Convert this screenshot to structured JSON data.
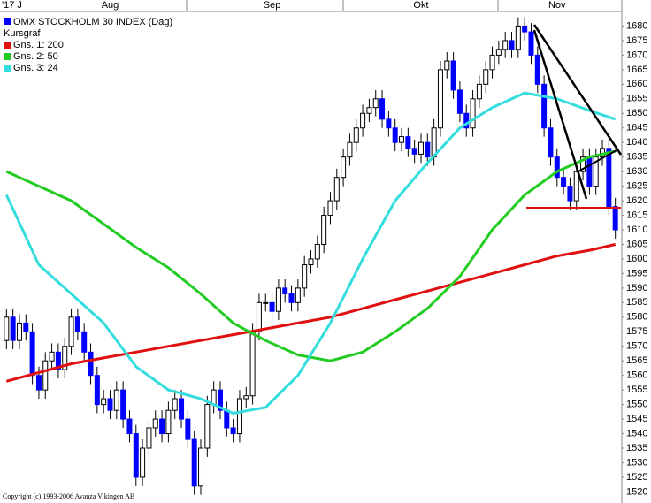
{
  "chart_data": {
    "type": "candlestick",
    "title": "OMX STOCKHOLM 30 INDEX (Dag)",
    "candle_name": "Kursgraf",
    "candle_color": "#0000ff",
    "copyright": "Copyright (c) 1993-2006 Avanza Vikingen AB",
    "candles": {
      "open": [
        1572,
        1580,
        1572,
        1578,
        1575,
        1560,
        1555,
        1565,
        1568,
        1562,
        1570,
        1580,
        1575,
        1568,
        1560,
        1550,
        1552,
        1548,
        1555,
        1545,
        1540,
        1525,
        1535,
        1542,
        1545,
        1540,
        1548,
        1552,
        1545,
        1538,
        1522,
        1535,
        1550,
        1555,
        1548,
        1542,
        1540,
        1552,
        1553,
        1575,
        1585,
        1585,
        1582,
        1590,
        1588,
        1585,
        1590,
        1598,
        1600,
        1605,
        1615,
        1620,
        1628,
        1635,
        1640,
        1645,
        1650,
        1652,
        1655,
        1648,
        1645,
        1640,
        1642,
        1638,
        1636,
        1640,
        1635,
        1645,
        1665,
        1668,
        1658,
        1650,
        1645,
        1655,
        1660,
        1665,
        1670,
        1672,
        1675,
        1672,
        1680,
        1678,
        1670,
        1660,
        1645,
        1635,
        1628,
        1625,
        1620,
        1630,
        1635,
        1625,
        1635,
        1638,
        1618
      ],
      "high": [
        1583,
        1583,
        1581,
        1581,
        1578,
        1563,
        1568,
        1571,
        1571,
        1573,
        1583,
        1583,
        1578,
        1571,
        1563,
        1555,
        1555,
        1558,
        1558,
        1548,
        1543,
        1538,
        1545,
        1548,
        1548,
        1551,
        1555,
        1555,
        1548,
        1541,
        1538,
        1553,
        1558,
        1558,
        1551,
        1545,
        1555,
        1556,
        1578,
        1588,
        1588,
        1588,
        1593,
        1593,
        1591,
        1593,
        1601,
        1603,
        1608,
        1618,
        1623,
        1631,
        1638,
        1643,
        1648,
        1653,
        1655,
        1658,
        1658,
        1651,
        1648,
        1645,
        1645,
        1641,
        1643,
        1643,
        1648,
        1668,
        1671,
        1671,
        1661,
        1653,
        1658,
        1663,
        1668,
        1673,
        1675,
        1678,
        1678,
        1683,
        1683,
        1681,
        1673,
        1663,
        1648,
        1638,
        1631,
        1628,
        1633,
        1638,
        1638,
        1638,
        1641,
        1641,
        1621
      ],
      "low": [
        1569,
        1569,
        1569,
        1572,
        1557,
        1552,
        1552,
        1562,
        1559,
        1559,
        1567,
        1572,
        1565,
        1557,
        1547,
        1547,
        1545,
        1545,
        1542,
        1537,
        1522,
        1522,
        1532,
        1539,
        1537,
        1537,
        1545,
        1542,
        1535,
        1519,
        1519,
        1532,
        1547,
        1545,
        1539,
        1537,
        1537,
        1549,
        1550,
        1572,
        1582,
        1579,
        1579,
        1585,
        1582,
        1582,
        1587,
        1595,
        1597,
        1602,
        1612,
        1617,
        1625,
        1632,
        1637,
        1642,
        1647,
        1649,
        1645,
        1642,
        1637,
        1637,
        1635,
        1633,
        1633,
        1632,
        1632,
        1642,
        1662,
        1655,
        1647,
        1642,
        1642,
        1652,
        1657,
        1662,
        1667,
        1669,
        1669,
        1669,
        1675,
        1667,
        1657,
        1642,
        1632,
        1625,
        1622,
        1617,
        1617,
        1627,
        1622,
        1622,
        1632,
        1615,
        1607
      ],
      "close": [
        1580,
        1572,
        1578,
        1575,
        1560,
        1555,
        1565,
        1568,
        1562,
        1570,
        1580,
        1575,
        1568,
        1560,
        1550,
        1552,
        1548,
        1555,
        1545,
        1540,
        1525,
        1535,
        1542,
        1545,
        1540,
        1548,
        1552,
        1545,
        1538,
        1522,
        1535,
        1550,
        1555,
        1548,
        1542,
        1540,
        1552,
        1553,
        1575,
        1585,
        1585,
        1582,
        1590,
        1588,
        1585,
        1590,
        1598,
        1600,
        1605,
        1615,
        1620,
        1628,
        1635,
        1640,
        1645,
        1650,
        1652,
        1655,
        1648,
        1645,
        1640,
        1642,
        1638,
        1636,
        1640,
        1635,
        1645,
        1665,
        1668,
        1658,
        1650,
        1645,
        1655,
        1660,
        1665,
        1670,
        1672,
        1675,
        1672,
        1680,
        1678,
        1670,
        1660,
        1645,
        1635,
        1628,
        1625,
        1620,
        1630,
        1635,
        1625,
        1635,
        1638,
        1618,
        1610
      ]
    },
    "series": [
      {
        "name": "Gns. 1: 200",
        "color": "#e01010",
        "x": [
          0,
          5,
          10,
          15,
          20,
          25,
          30,
          35,
          40,
          45,
          50,
          55,
          60,
          65,
          70,
          75,
          80,
          85,
          90,
          94
        ],
        "values": [
          1558,
          1561,
          1564,
          1566,
          1568,
          1570,
          1572,
          1574,
          1576,
          1578,
          1580,
          1583,
          1586,
          1589,
          1592,
          1595,
          1598,
          1601,
          1603,
          1605
        ]
      },
      {
        "name": "Gns. 2: 50",
        "color": "#22cc22",
        "x": [
          0,
          5,
          10,
          15,
          20,
          25,
          30,
          35,
          40,
          45,
          50,
          55,
          60,
          65,
          70,
          75,
          80,
          85,
          90,
          94
        ],
        "values": [
          1630,
          1625,
          1620,
          1612,
          1604,
          1597,
          1588,
          1578,
          1572,
          1567,
          1565,
          1568,
          1575,
          1583,
          1594,
          1610,
          1622,
          1630,
          1635,
          1637
        ]
      },
      {
        "name": "Gns. 3: 24",
        "color": "#33dddd",
        "x": [
          0,
          5,
          10,
          15,
          20,
          25,
          30,
          35,
          40,
          45,
          50,
          55,
          60,
          65,
          70,
          75,
          80,
          85,
          90,
          94
        ],
        "values": [
          1622,
          1598,
          1588,
          1578,
          1563,
          1555,
          1552,
          1547,
          1549,
          1560,
          1578,
          1600,
          1620,
          1633,
          1645,
          1652,
          1657,
          1655,
          1651,
          1648
        ]
      }
    ],
    "xlim": [
      -1,
      95
    ],
    "xticks": [
      {
        "value": -1,
        "label": "'17 J"
      },
      {
        "value": 16,
        "label": "Aug"
      },
      {
        "value": 41,
        "label": "Sep"
      },
      {
        "value": 64,
        "label": "Okt"
      },
      {
        "value": 85,
        "label": "Nov"
      }
    ],
    "ylim": [
      1518,
      1685
    ],
    "yticks": [
      1520,
      1525,
      1530,
      1535,
      1540,
      1545,
      1550,
      1555,
      1560,
      1565,
      1570,
      1575,
      1580,
      1585,
      1590,
      1595,
      1600,
      1605,
      1610,
      1615,
      1620,
      1625,
      1630,
      1635,
      1640,
      1645,
      1650,
      1655,
      1660,
      1665,
      1670,
      1675,
      1680
    ]
  }
}
